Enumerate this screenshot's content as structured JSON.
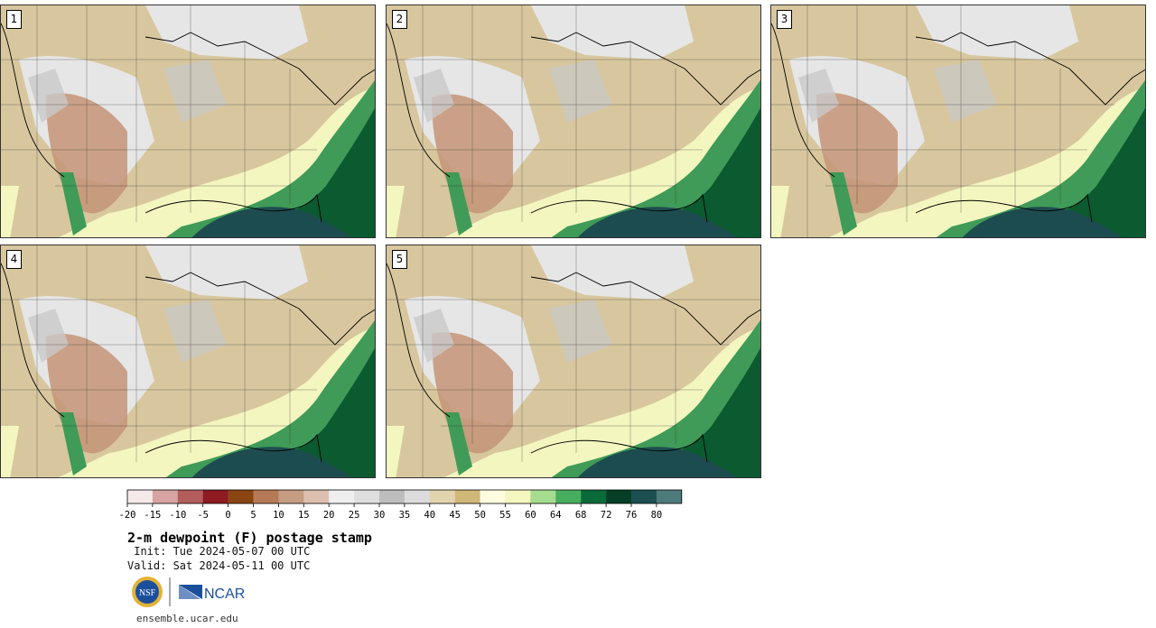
{
  "title": "2-m dewpoint (F) postage stamp",
  "init": " Init: Tue 2024-05-07 00 UTC",
  "valid": "Valid: Sat 2024-05-11 00 UTC",
  "footer": "ensemble.ucar.edu",
  "logo": {
    "nsf": "NSF",
    "ncar": "NCAR"
  },
  "members": [
    "1",
    "2",
    "3",
    "4",
    "5"
  ],
  "colorbar": {
    "tick_labels": [
      "-20",
      "-15",
      "-10",
      "-5",
      "0",
      "5",
      "10",
      "15",
      "20",
      "25",
      "30",
      "35",
      "40",
      "45",
      "50",
      "55",
      "60",
      "64",
      "68",
      "72",
      "76",
      "80"
    ],
    "colors": [
      "#f5e9e9",
      "#d7a3a3",
      "#b35c5c",
      "#8e1a22",
      "#8b4513",
      "#b47a55",
      "#c69d82",
      "#dcbfae",
      "#efefef",
      "#dedede",
      "#bdbdbd",
      "#dcdcdc",
      "#e3d4b0",
      "#d1b778",
      "#fffde0",
      "#f5f7c0",
      "#a6dc8f",
      "#48ae5f",
      "#0a6b3a",
      "#053e25",
      "#1c4f52",
      "#4d7b7a"
    ]
  },
  "colors": {
    "desert": "#c49477",
    "plains": "#d8c79e",
    "gray": "#c9c9c9",
    "lightgray": "#e6e6e6",
    "coastal_green": "#3f9b57",
    "dark_green": "#0b5a30",
    "gulf": "#1d4c50",
    "yellow": "#f3f6bf"
  }
}
